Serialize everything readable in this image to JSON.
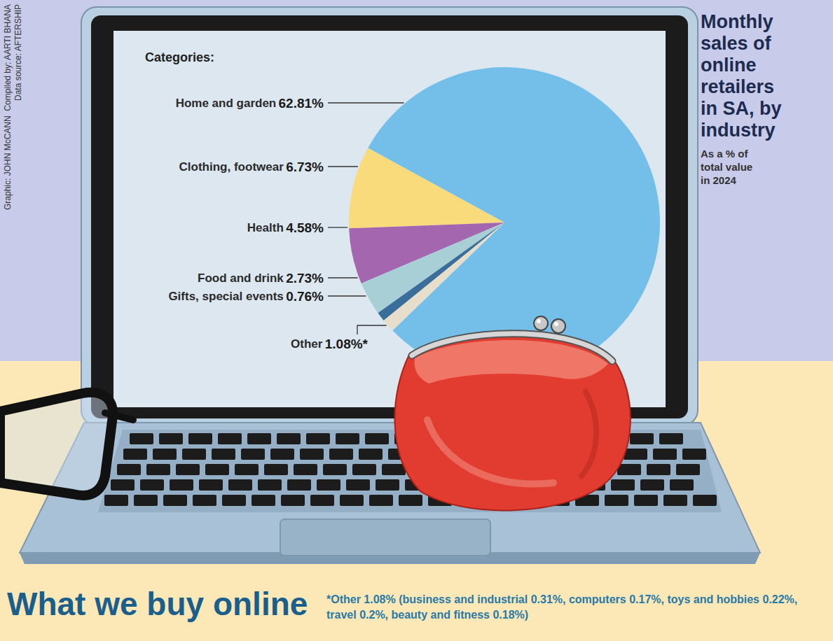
{
  "chart_data": {
    "type": "pie",
    "title": "Monthly sales of online retailers in SA, by industry",
    "subtitle": "As a % of total value in 2024",
    "heading": "What we buy online",
    "label_heading": "Categories:",
    "footnote": "*Other 1.08% (business and industrial 0.31%, computers 0.17%, toys and hobbies 0.22%, travel 0.2%, beauty and fitness 0.18%)",
    "credits": [
      "Graphic: JOHN McCANN  Compiled by: AARTI BHANA",
      "Data source: AFTERSHIP"
    ],
    "categories": [
      "Home and garden",
      "Clothing, footwear",
      "Health",
      "Food and drink",
      "Gifts, special events",
      "Other"
    ],
    "values": [
      62.81,
      6.73,
      4.58,
      2.73,
      0.76,
      1.08
    ],
    "value_labels": [
      "62.81%",
      "6.73%",
      "4.58%",
      "2.73%",
      "0.76%",
      "1.08%*"
    ],
    "colors": [
      "#74bfea",
      "#fadb7b",
      "#a566b0",
      "#a9cfd6",
      "#3a6e9a",
      "#e6decb"
    ],
    "data_labels": true
  }
}
